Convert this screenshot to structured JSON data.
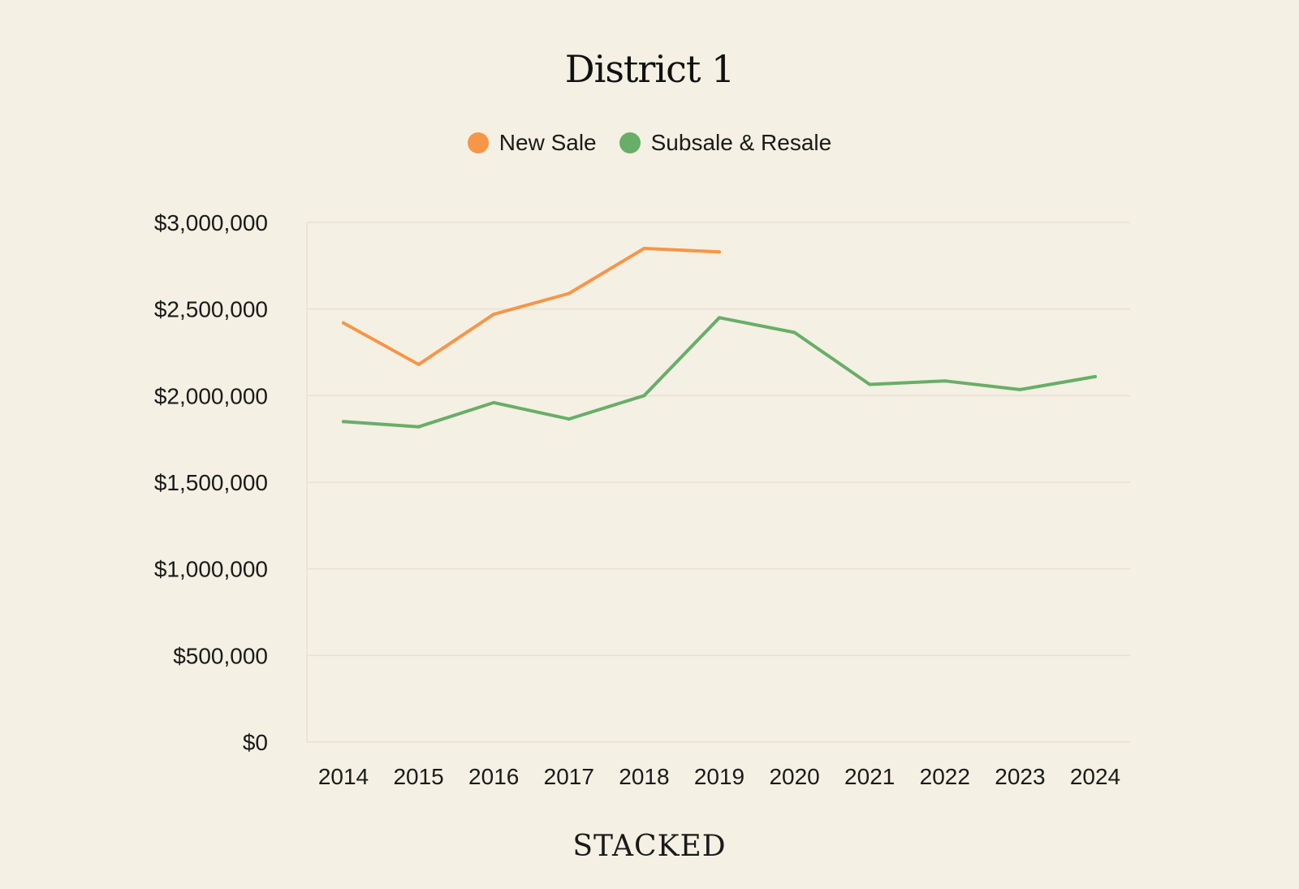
{
  "brand": "STACKED",
  "chart_data": {
    "type": "line",
    "title": "District 1",
    "xlabel": "",
    "ylabel": "",
    "categories": [
      "2014",
      "2015",
      "2016",
      "2017",
      "2018",
      "2019",
      "2020",
      "2021",
      "2022",
      "2023",
      "2024"
    ],
    "ylim": [
      0,
      3000000
    ],
    "yticks": [
      0,
      500000,
      1000000,
      1500000,
      2000000,
      2500000,
      3000000
    ],
    "ytick_labels": [
      "$0",
      "$500,000",
      "$1,000,000",
      "$1,500,000",
      "$2,000,000",
      "$2,500,000",
      "$3,000,000"
    ],
    "grid": true,
    "legend_position": "top-center",
    "series": [
      {
        "name": "New Sale",
        "color": "#f79548",
        "values": [
          2420000,
          2180000,
          2470000,
          2590000,
          2850000,
          2830000,
          null,
          null,
          null,
          null,
          null
        ]
      },
      {
        "name": "Subsale & Resale",
        "color": "#68ae68",
        "values": [
          1850000,
          1820000,
          1960000,
          1865000,
          2000000,
          2450000,
          2365000,
          2065000,
          2085000,
          2035000,
          2110000
        ]
      }
    ]
  }
}
